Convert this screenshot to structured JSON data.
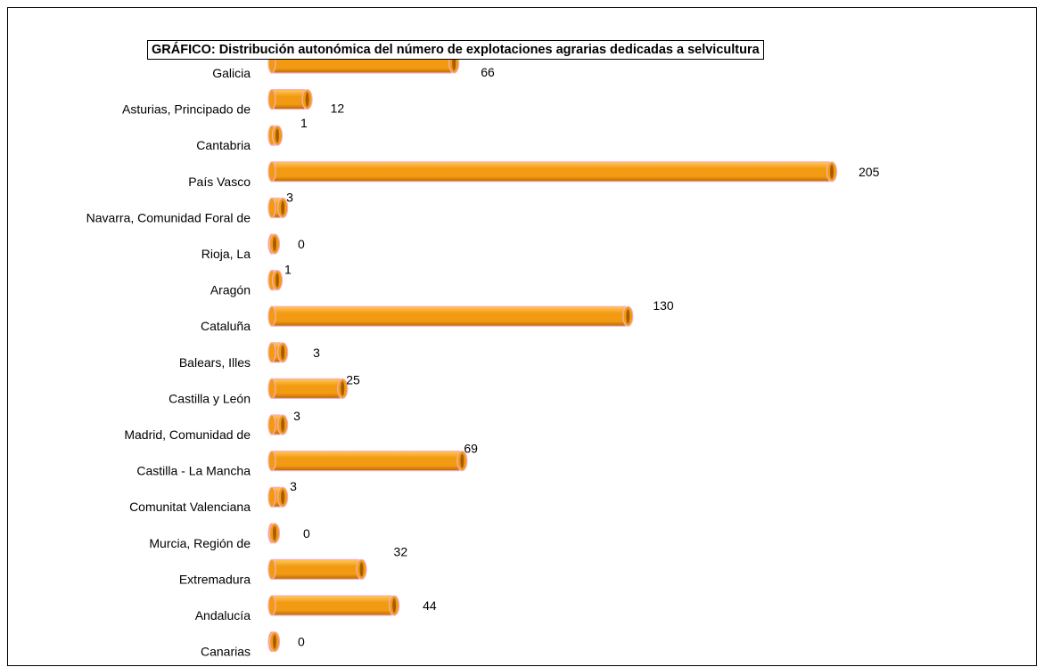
{
  "chart_data": {
    "type": "bar",
    "orientation": "horizontal",
    "title": "GRÁFICO: Distribución autonómica del número de explotaciones agrarias dedicadas a selvicultura",
    "xlabel": "",
    "ylabel": "",
    "categories": [
      "Galicia",
      "Asturias, Principado de",
      "Cantabria",
      "País Vasco",
      "Navarra, Comunidad Foral de",
      "Rioja, La",
      "Aragón",
      "Cataluña",
      "Balears, Illes",
      "Castilla y León",
      "Madrid, Comunidad de",
      "Castilla - La Mancha",
      "Comunitat Valenciana",
      "Murcia, Región de",
      "Extremadura",
      "Andalucía",
      "Canarias"
    ],
    "values": [
      66,
      12,
      1,
      205,
      3,
      0,
      1,
      130,
      3,
      25,
      3,
      69,
      3,
      0,
      32,
      44,
      0
    ],
    "value_labels": [
      "66",
      "12",
      "1",
      "205",
      "3",
      "0",
      "1",
      "130",
      "3",
      "25",
      "3",
      "69",
      "3",
      "0",
      "32",
      "44",
      "0"
    ],
    "xlim": [
      0,
      205
    ],
    "grid": false,
    "legend": "none",
    "colors": {
      "bar_fill": "#f29a12",
      "bar_highlight": "#ffc85a",
      "bar_shadow": "#b86a00",
      "bar_outline": "#f6b0c0",
      "cap_fill": "#a85c00"
    }
  }
}
